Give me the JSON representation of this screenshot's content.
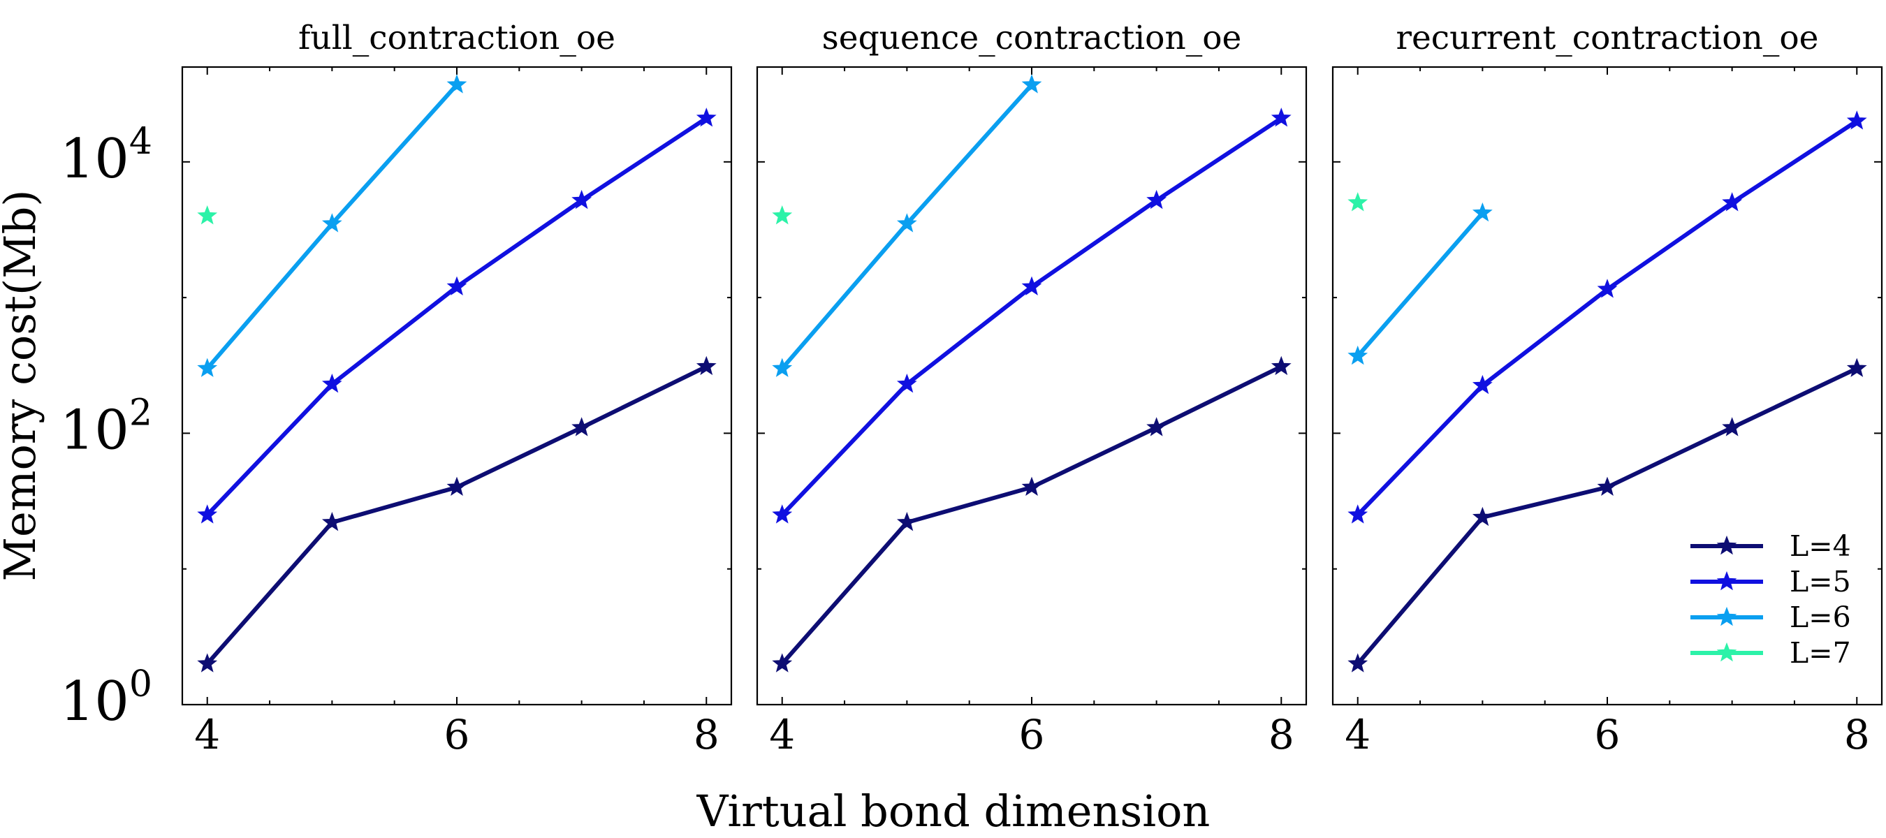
{
  "figure": {
    "ylabel": "Memory cost(Mb)",
    "xlabel": "Virtual bond dimension"
  },
  "colors": {
    "L=4": "#0d0d73",
    "L=5": "#1010e0",
    "L=6": "#0a9ff0",
    "L=7": "#2cf2a8"
  },
  "chart_data": [
    {
      "type": "line",
      "title": "full_contraction_oe",
      "xlim": [
        3.8,
        8.2
      ],
      "ylim": [
        1,
        50000
      ],
      "yscale": "log",
      "xticks": [
        4,
        6,
        8
      ],
      "xtick_labels": [
        "4",
        "6",
        "8"
      ],
      "yticks": [
        1,
        100,
        10000
      ],
      "ytick_labels": [
        {
          "base": "10",
          "exp": "0"
        },
        {
          "base": "10",
          "exp": "2"
        },
        {
          "base": "10",
          "exp": "4"
        }
      ],
      "series": [
        {
          "name": "L=4",
          "x": [
            4,
            5,
            6,
            7,
            8
          ],
          "y": [
            2,
            22,
            40,
            110,
            310
          ]
        },
        {
          "name": "L=5",
          "x": [
            4,
            5,
            6,
            7,
            8
          ],
          "y": [
            25,
            230,
            1200,
            5200,
            21000
          ]
        },
        {
          "name": "L=6",
          "x": [
            4,
            5,
            6
          ],
          "y": [
            300,
            3500,
            37000
          ]
        },
        {
          "name": "L=7",
          "x": [
            4
          ],
          "y": [
            4000
          ]
        }
      ]
    },
    {
      "type": "line",
      "title": "sequence_contraction_oe",
      "xlim": [
        3.8,
        8.2
      ],
      "ylim": [
        1,
        50000
      ],
      "yscale": "log",
      "xticks": [
        4,
        6,
        8
      ],
      "xtick_labels": [
        "4",
        "6",
        "8"
      ],
      "series": [
        {
          "name": "L=4",
          "x": [
            4,
            5,
            6,
            7,
            8
          ],
          "y": [
            2,
            22,
            40,
            110,
            310
          ]
        },
        {
          "name": "L=5",
          "x": [
            4,
            5,
            6,
            7,
            8
          ],
          "y": [
            25,
            230,
            1200,
            5200,
            21000
          ]
        },
        {
          "name": "L=6",
          "x": [
            4,
            5,
            6
          ],
          "y": [
            300,
            3500,
            37000
          ]
        },
        {
          "name": "L=7",
          "x": [
            4
          ],
          "y": [
            4000
          ]
        }
      ]
    },
    {
      "type": "line",
      "title": "recurrent_contraction_oe",
      "xlim": [
        3.8,
        8.2
      ],
      "ylim": [
        1,
        50000
      ],
      "yscale": "log",
      "xticks": [
        4,
        6,
        8
      ],
      "xtick_labels": [
        "4",
        "6",
        "8"
      ],
      "legend": "lower-right",
      "series": [
        {
          "name": "L=4",
          "x": [
            4,
            5,
            6,
            7,
            8
          ],
          "y": [
            2,
            24,
            40,
            110,
            300
          ]
        },
        {
          "name": "L=5",
          "x": [
            4,
            5,
            6,
            7,
            8
          ],
          "y": [
            25,
            225,
            1150,
            5000,
            20000
          ]
        },
        {
          "name": "L=6",
          "x": [
            4,
            5
          ],
          "y": [
            370,
            4200
          ]
        },
        {
          "name": "L=7",
          "x": [
            4
          ],
          "y": [
            5000
          ]
        }
      ]
    }
  ]
}
